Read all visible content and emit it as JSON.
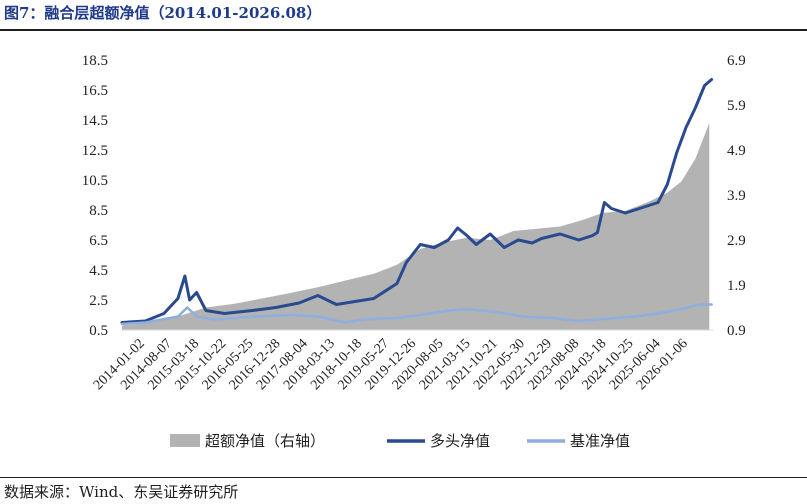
{
  "title": "图7：融合层超额净值（2014.01-2026.08）",
  "source": "数据来源：Wind、东吴证券研究所",
  "colors": {
    "title": "#1f3a8a",
    "excess": "#b3b3b3",
    "longonly": "#2a4a8f",
    "benchmark": "#8faee0"
  },
  "chart_data": {
    "type": "line",
    "x_tick_labels": [
      "2014-01-02",
      "2014-08-07",
      "2015-03-18",
      "2015-10-22",
      "2016-05-25",
      "2016-12-28",
      "2017-08-04",
      "2018-03-13",
      "2018-10-18",
      "2019-05-27",
      "2019-12-26",
      "2020-08-05",
      "2021-03-15",
      "2021-10-21",
      "2022-05-30",
      "2022-12-29",
      "2023-08-08",
      "2024-03-18",
      "2024-10-25",
      "2025-06-04",
      "2026-01-06"
    ],
    "y_left": {
      "ticks": [
        "18.5",
        "16.5",
        "14.5",
        "12.5",
        "10.5",
        "8.5",
        "6.5",
        "4.5",
        "2.5",
        "0.5"
      ],
      "min": 0.5,
      "max": 18.5
    },
    "y_right": {
      "ticks": [
        "6.9",
        "5.9",
        "4.9",
        "3.9",
        "2.9",
        "1.9",
        "0.9"
      ],
      "min": 0.9,
      "max": 6.9
    },
    "legend_position": "bottom",
    "series": [
      {
        "name": "超额净值（右轴）",
        "type": "area",
        "axis": "right",
        "x": [
          2014.0,
          2014.6,
          2015.2,
          2015.5,
          2015.8,
          2016.4,
          2017.0,
          2017.6,
          2018.2,
          2018.8,
          2019.4,
          2019.9,
          2020.4,
          2020.9,
          2021.4,
          2021.9,
          2022.4,
          2022.9,
          2023.4,
          2023.9,
          2024.3,
          2024.8,
          2025.3,
          2025.7,
          2026.0,
          2026.3,
          2026.6
        ],
        "values": [
          1.0,
          1.06,
          1.2,
          1.3,
          1.4,
          1.48,
          1.6,
          1.72,
          1.85,
          2.0,
          2.15,
          2.35,
          2.7,
          2.85,
          2.95,
          2.9,
          3.1,
          3.15,
          3.2,
          3.35,
          3.5,
          3.55,
          3.75,
          3.95,
          4.2,
          4.7,
          5.5
        ]
      },
      {
        "name": "多头净值",
        "type": "line",
        "axis": "left",
        "x": [
          2014.0,
          2014.5,
          2014.9,
          2015.2,
          2015.35,
          2015.45,
          2015.6,
          2015.8,
          2016.2,
          2016.8,
          2017.3,
          2017.8,
          2018.2,
          2018.6,
          2019.0,
          2019.4,
          2019.9,
          2020.1,
          2020.4,
          2020.7,
          2021.0,
          2021.2,
          2021.4,
          2021.6,
          2021.9,
          2022.2,
          2022.5,
          2022.8,
          2023.0,
          2023.4,
          2023.8,
          2024.1,
          2024.2,
          2024.35,
          2024.5,
          2024.8,
          2025.1,
          2025.5,
          2025.7,
          2025.9,
          2026.1,
          2026.3,
          2026.5,
          2026.65
        ],
        "values": [
          1.0,
          1.1,
          1.6,
          2.6,
          4.1,
          2.5,
          3.0,
          1.8,
          1.6,
          1.8,
          2.0,
          2.3,
          2.8,
          2.2,
          2.4,
          2.6,
          3.6,
          5.0,
          6.2,
          6.0,
          6.5,
          7.3,
          6.8,
          6.2,
          6.9,
          6.0,
          6.5,
          6.3,
          6.6,
          6.9,
          6.5,
          6.8,
          7.0,
          9.0,
          8.6,
          8.3,
          8.6,
          9.0,
          10.2,
          12.3,
          14.0,
          15.3,
          16.8,
          17.2
        ]
      },
      {
        "name": "基准净值",
        "type": "line",
        "axis": "left",
        "x": [
          2014.0,
          2014.5,
          2015.2,
          2015.4,
          2015.6,
          2016.0,
          2016.8,
          2017.6,
          2018.2,
          2018.8,
          2019.2,
          2019.9,
          2020.4,
          2021.0,
          2021.4,
          2022.0,
          2022.6,
          2023.2,
          2023.8,
          2024.2,
          2024.6,
          2025.0,
          2025.5,
          2026.0,
          2026.4,
          2026.65
        ],
        "values": [
          0.9,
          1.0,
          1.4,
          2.0,
          1.4,
          1.2,
          1.4,
          1.5,
          1.4,
          1.0,
          1.2,
          1.3,
          1.5,
          1.8,
          1.9,
          1.7,
          1.4,
          1.3,
          1.1,
          1.2,
          1.3,
          1.4,
          1.6,
          1.9,
          2.2,
          2.2
        ]
      }
    ]
  }
}
